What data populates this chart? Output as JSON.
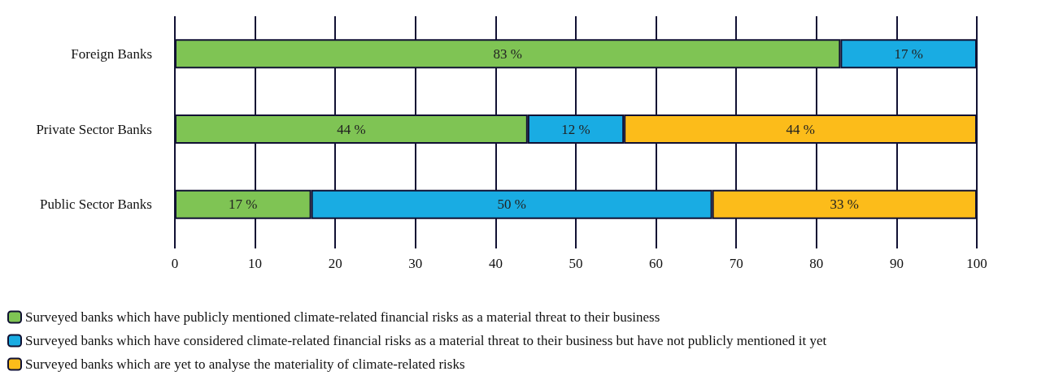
{
  "chart_data": {
    "type": "bar",
    "orientation": "horizontal",
    "stacked": true,
    "categories": [
      "Foreign Banks",
      "Private Sector Banks",
      "Public Sector Banks"
    ],
    "series": [
      {
        "name": "Surveyed banks which have publicly mentioned climate-related financial risks as a material threat to their business",
        "color": "#7fc454",
        "values": [
          83,
          44,
          17
        ],
        "value_labels": [
          "83 %",
          "44 %",
          "17 %"
        ]
      },
      {
        "name": "Surveyed banks which have considered climate-related financial risks as a material threat to their business but have not publicly mentioned it yet",
        "color": "#19ace3",
        "values": [
          17,
          12,
          50
        ],
        "value_labels": [
          "17 %",
          "12 %",
          "50 %"
        ]
      },
      {
        "name": "Surveyed banks which are yet to analyse the materiality of climate-related risks",
        "color": "#fcbc1a",
        "values": [
          null,
          44,
          33
        ],
        "value_labels": [
          null,
          "44 %",
          "33 %"
        ]
      }
    ],
    "xlim": [
      0,
      100
    ],
    "xticks": [
      0,
      10,
      20,
      30,
      40,
      50,
      60,
      70,
      80,
      90,
      100
    ],
    "grid": "x",
    "legend": "bottom left"
  }
}
